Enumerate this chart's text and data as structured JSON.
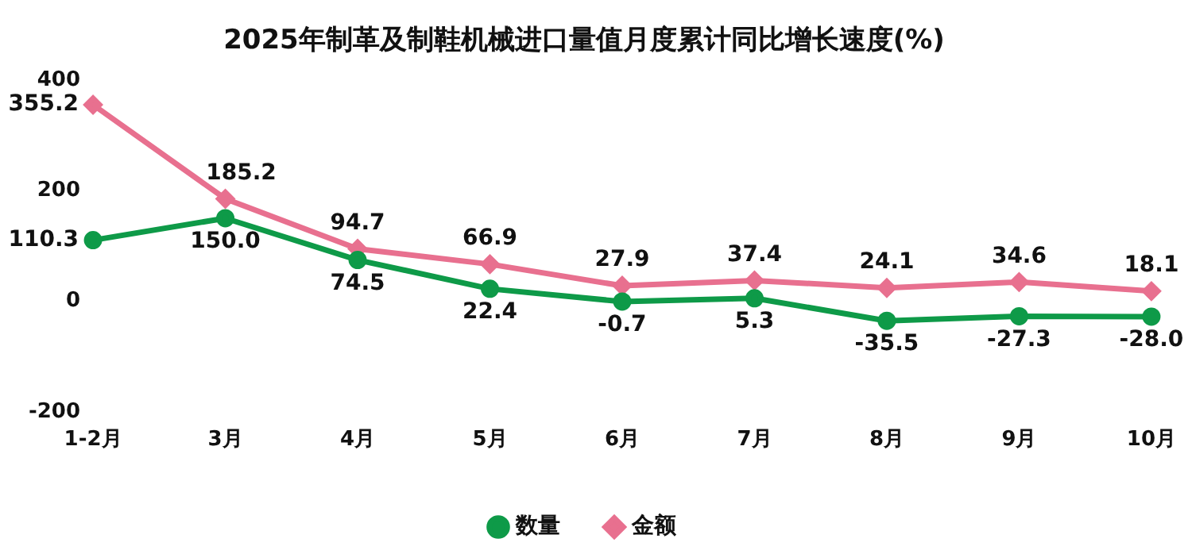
{
  "chart_data": {
    "type": "line",
    "title": "2025年制革及制鞋机械进口量值月度累计同比增长速度(%)",
    "categories": [
      "1-2月",
      "3月",
      "4月",
      "5月",
      "6月",
      "7月",
      "8月",
      "9月",
      "10月"
    ],
    "series": [
      {
        "name": "数量",
        "color": "#0e9a48",
        "marker": "circle",
        "values": [
          110.3,
          150.0,
          74.5,
          22.4,
          -0.7,
          5.3,
          -35.5,
          -27.3,
          -28.0
        ],
        "value_labels": [
          "110.3",
          "150.0",
          "74.5",
          "22.4",
          "-0.7",
          "5.3",
          "-35.5",
          "-27.3",
          "-28.0"
        ]
      },
      {
        "name": "金额",
        "color": "#e8708f",
        "marker": "diamond",
        "values": [
          355.2,
          185.2,
          94.7,
          66.9,
          27.9,
          37.4,
          24.1,
          34.6,
          18.1
        ],
        "value_labels": [
          "355.2",
          "185.2",
          "94.7",
          "66.9",
          "27.9",
          "37.4",
          "24.1",
          "34.6",
          "18.1"
        ]
      }
    ],
    "ylim": [
      -200,
      400
    ],
    "yticks": [
      -200,
      0,
      200,
      400
    ],
    "grid": false,
    "legend": "bottom",
    "line_style": "solid"
  }
}
